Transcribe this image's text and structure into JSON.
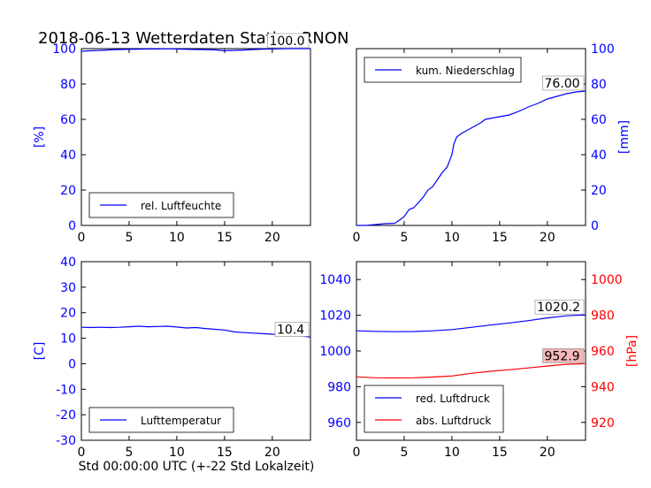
{
  "figure": {
    "title": "2018-06-13 Wetterdaten Station RNON",
    "xlabel": "Std 00:00:00 UTC (+-22 Std Lokalzeit)"
  },
  "colors": {
    "blue": "#0000ff",
    "red": "#ff0000",
    "axis": "#000000",
    "last_box_red": "#f4b8b8"
  },
  "chart_data": [
    {
      "id": "humidity",
      "type": "line",
      "ylabel": "[%]",
      "ylim": [
        0,
        100
      ],
      "yticks": [
        0,
        20,
        40,
        60,
        80,
        100
      ],
      "xlim": [
        0,
        24
      ],
      "xticks": [
        0,
        5,
        10,
        15,
        20
      ],
      "legend": {
        "label": "rel. Luftfeuchte",
        "placement": "bottom-left"
      },
      "last_value_label": "100.0",
      "series": [
        {
          "name": "rel. Luftfeuchte",
          "color": "#0000ff",
          "x": [
            0,
            1,
            2,
            3,
            4,
            5,
            6,
            7,
            8,
            9,
            10,
            11,
            12,
            13,
            14,
            15,
            16,
            17,
            18,
            19,
            20,
            21,
            22,
            23,
            24
          ],
          "y": [
            98.5,
            98.8,
            99.0,
            99.3,
            99.5,
            99.6,
            99.7,
            99.8,
            99.8,
            99.9,
            99.8,
            99.6,
            99.5,
            99.4,
            99.3,
            98.8,
            99.0,
            99.2,
            99.5,
            99.7,
            99.8,
            99.9,
            100.0,
            100.0,
            100.0
          ]
        }
      ]
    },
    {
      "id": "precipitation",
      "type": "line",
      "ylabel": "[mm]",
      "ylim": [
        0,
        100
      ],
      "yticks": [
        0,
        20,
        40,
        60,
        80,
        100
      ],
      "xlim": [
        0,
        24
      ],
      "xticks": [
        0,
        5,
        10,
        15,
        20
      ],
      "legend": {
        "label": "kum. Niederschlag",
        "placement": "top-left"
      },
      "last_value_label": "76.00",
      "series": [
        {
          "name": "kum. Niederschlag",
          "color": "#0000ff",
          "x": [
            0,
            1,
            2,
            3,
            4,
            4.5,
            5,
            5.5,
            6,
            6.5,
            7,
            7.5,
            8,
            8.5,
            9,
            9.5,
            10,
            10.2,
            10.5,
            11,
            12,
            13,
            13.5,
            14,
            15,
            16,
            17,
            18,
            19,
            20,
            21,
            22,
            23,
            24
          ],
          "y": [
            0,
            0,
            0.5,
            1,
            1.2,
            3,
            5,
            9,
            10,
            13,
            16,
            20,
            22,
            26,
            30,
            33,
            40,
            46,
            50,
            52,
            55,
            58,
            60,
            60.5,
            61.5,
            62.5,
            64.5,
            67,
            69,
            71.5,
            73,
            74.5,
            75.5,
            76
          ]
        }
      ]
    },
    {
      "id": "temperature",
      "type": "line",
      "ylabel": "[C]",
      "ylim": [
        -30,
        40
      ],
      "yticks": [
        -30,
        -20,
        -10,
        0,
        10,
        20,
        30,
        40
      ],
      "xlim": [
        0,
        24
      ],
      "xticks": [
        0,
        5,
        10,
        15,
        20
      ],
      "legend": {
        "label": "Lufttemperatur",
        "placement": "bottom-left"
      },
      "last_value_label": "10.4",
      "series": [
        {
          "name": "Lufttemperatur",
          "color": "#0000ff",
          "x": [
            0,
            1,
            2,
            3,
            4,
            5,
            6,
            7,
            8,
            9,
            10,
            11,
            12,
            13,
            14,
            15,
            16,
            17,
            18,
            19,
            20,
            21,
            22,
            23,
            24
          ],
          "y": [
            14.3,
            14.2,
            14.3,
            14.2,
            14.3,
            14.5,
            14.7,
            14.5,
            14.6,
            14.7,
            14.4,
            14.0,
            14.2,
            13.8,
            13.5,
            13.2,
            12.5,
            12.2,
            12.0,
            11.8,
            11.6,
            11.5,
            11.3,
            11.0,
            10.4
          ]
        }
      ]
    },
    {
      "id": "pressure",
      "type": "line",
      "ylabel": "[hPa]",
      "ylim": [
        950,
        1050
      ],
      "yticks": [
        960,
        980,
        1000,
        1020,
        1040
      ],
      "y2lim": [
        910,
        1010
      ],
      "y2ticks": [
        920,
        940,
        960,
        980,
        1000
      ],
      "xlim": [
        0,
        24
      ],
      "xticks": [
        0,
        5,
        10,
        15,
        20
      ],
      "legend": {
        "placement": "bottom-left",
        "entries": [
          "red. Luftdruck",
          "abs. Luftdruck"
        ]
      },
      "last_value_labels": [
        "1020.2",
        "952.9"
      ],
      "series": [
        {
          "name": "red. Luftdruck",
          "color": "#0000ff",
          "axis": "left",
          "x": [
            0,
            2,
            4,
            6,
            8,
            10,
            12,
            14,
            16,
            18,
            20,
            22,
            24
          ],
          "y": [
            1011.3,
            1011.0,
            1010.8,
            1010.9,
            1011.3,
            1012.0,
            1013.2,
            1014.5,
            1015.7,
            1017.0,
            1018.5,
            1019.7,
            1020.2
          ]
        },
        {
          "name": "abs. Luftdruck",
          "color": "#ff0000",
          "axis": "right",
          "x": [
            0,
            2,
            4,
            6,
            8,
            10,
            12,
            14,
            16,
            18,
            20,
            22,
            24
          ],
          "y": [
            945.5,
            945.0,
            944.9,
            945.0,
            945.4,
            946.0,
            947.5,
            948.6,
            949.5,
            950.5,
            951.6,
            952.5,
            952.9
          ]
        }
      ]
    }
  ]
}
